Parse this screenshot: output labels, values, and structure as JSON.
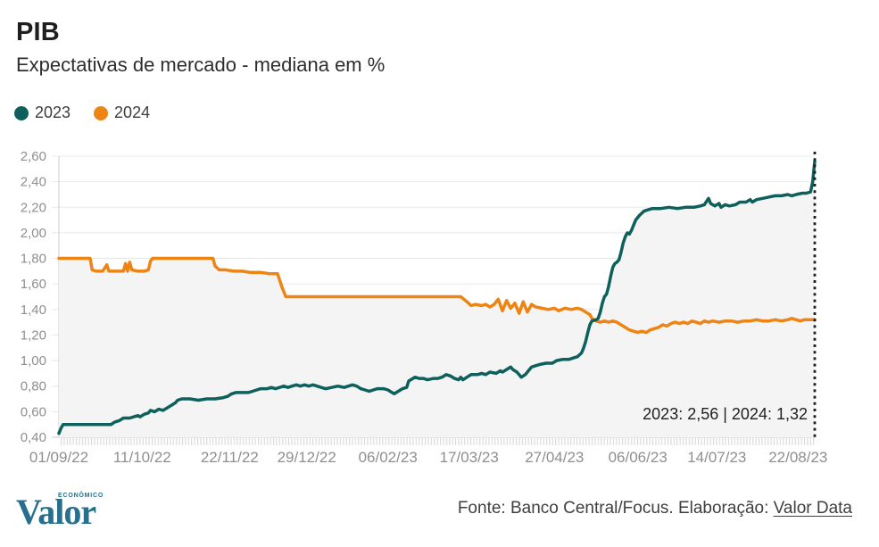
{
  "header": {
    "title": "PIB",
    "subtitle": "Expectativas de mercado - mediana em %"
  },
  "legend": [
    {
      "label": "2023",
      "color": "#0e605c"
    },
    {
      "label": "2024",
      "color": "#ee8414"
    }
  ],
  "chart_data": {
    "type": "line",
    "title": "PIB",
    "subtitle": "Expectativas de mercado - mediana em %",
    "unit": "%",
    "grid": "horizontal",
    "legend_position": "top-left",
    "plot_fill_color": "#f4f4f4",
    "x_axis": {
      "labels": [
        "01/09/22",
        "11/10/22",
        "22/11/22",
        "29/12/22",
        "06/02/23",
        "17/03/23",
        "27/04/23",
        "06/06/23",
        "14/07/23",
        "22/08/23"
      ],
      "label_days": [
        0,
        40,
        82,
        119,
        158,
        197,
        238,
        278,
        316,
        355
      ],
      "span_days": 363
    },
    "y_axis": {
      "min": 0.4,
      "max": 2.6,
      "step": 0.2,
      "tick_labels": [
        "0,40",
        "0,60",
        "0,80",
        "1,00",
        "1,20",
        "1,40",
        "1,60",
        "1,80",
        "2,00",
        "2,20",
        "2,40",
        "2,60"
      ]
    },
    "annotation": {
      "text": "2023: 2,56  |  2024: 1,32",
      "marker": "dotted-vertical-line-at-last-point"
    },
    "series": [
      {
        "name": "2023",
        "color": "#0e605c",
        "final_value": "2,56",
        "points": [
          [
            0,
            0.43
          ],
          [
            1,
            0.47
          ],
          [
            2,
            0.5
          ],
          [
            8,
            0.5
          ],
          [
            14,
            0.5
          ],
          [
            20,
            0.5
          ],
          [
            25,
            0.5
          ],
          [
            27,
            0.52
          ],
          [
            29,
            0.53
          ],
          [
            31,
            0.55
          ],
          [
            34,
            0.55
          ],
          [
            36,
            0.56
          ],
          [
            38,
            0.57
          ],
          [
            39,
            0.56
          ],
          [
            41,
            0.58
          ],
          [
            43,
            0.59
          ],
          [
            44,
            0.61
          ],
          [
            46,
            0.6
          ],
          [
            48,
            0.62
          ],
          [
            50,
            0.61
          ],
          [
            52,
            0.63
          ],
          [
            54,
            0.65
          ],
          [
            56,
            0.67
          ],
          [
            57,
            0.69
          ],
          [
            59,
            0.7
          ],
          [
            63,
            0.7
          ],
          [
            67,
            0.69
          ],
          [
            71,
            0.7
          ],
          [
            75,
            0.7
          ],
          [
            79,
            0.71
          ],
          [
            81,
            0.72
          ],
          [
            83,
            0.74
          ],
          [
            85,
            0.75
          ],
          [
            88,
            0.75
          ],
          [
            91,
            0.75
          ],
          [
            93,
            0.76
          ],
          [
            95,
            0.77
          ],
          [
            97,
            0.78
          ],
          [
            100,
            0.78
          ],
          [
            102,
            0.79
          ],
          [
            104,
            0.78
          ],
          [
            106,
            0.79
          ],
          [
            108,
            0.8
          ],
          [
            110,
            0.79
          ],
          [
            112,
            0.8
          ],
          [
            114,
            0.81
          ],
          [
            116,
            0.8
          ],
          [
            118,
            0.81
          ],
          [
            120,
            0.8
          ],
          [
            122,
            0.81
          ],
          [
            124,
            0.8
          ],
          [
            126,
            0.79
          ],
          [
            128,
            0.78
          ],
          [
            131,
            0.79
          ],
          [
            134,
            0.8
          ],
          [
            137,
            0.79
          ],
          [
            139,
            0.8
          ],
          [
            141,
            0.81
          ],
          [
            143,
            0.8
          ],
          [
            145,
            0.78
          ],
          [
            147,
            0.77
          ],
          [
            149,
            0.76
          ],
          [
            151,
            0.77
          ],
          [
            153,
            0.78
          ],
          [
            156,
            0.78
          ],
          [
            158,
            0.77
          ],
          [
            160,
            0.75
          ],
          [
            161,
            0.74
          ],
          [
            163,
            0.76
          ],
          [
            165,
            0.78
          ],
          [
            167,
            0.79
          ],
          [
            168,
            0.84
          ],
          [
            170,
            0.86
          ],
          [
            171,
            0.87
          ],
          [
            173,
            0.86
          ],
          [
            175,
            0.86
          ],
          [
            177,
            0.85
          ],
          [
            180,
            0.86
          ],
          [
            182,
            0.86
          ],
          [
            184,
            0.87
          ],
          [
            186,
            0.89
          ],
          [
            188,
            0.88
          ],
          [
            190,
            0.86
          ],
          [
            192,
            0.85
          ],
          [
            193,
            0.87
          ],
          [
            194,
            0.85
          ],
          [
            196,
            0.87
          ],
          [
            198,
            0.89
          ],
          [
            201,
            0.89
          ],
          [
            203,
            0.9
          ],
          [
            205,
            0.89
          ],
          [
            207,
            0.91
          ],
          [
            210,
            0.9
          ],
          [
            212,
            0.92
          ],
          [
            213,
            0.91
          ],
          [
            215,
            0.93
          ],
          [
            217,
            0.95
          ],
          [
            218,
            0.93
          ],
          [
            220,
            0.91
          ],
          [
            221,
            0.89
          ],
          [
            222,
            0.87
          ],
          [
            224,
            0.89
          ],
          [
            226,
            0.93
          ],
          [
            227,
            0.95
          ],
          [
            229,
            0.96
          ],
          [
            231,
            0.97
          ],
          [
            234,
            0.98
          ],
          [
            237,
            0.98
          ],
          [
            239,
            1.0
          ],
          [
            242,
            1.01
          ],
          [
            245,
            1.01
          ],
          [
            247,
            1.02
          ],
          [
            249,
            1.03
          ],
          [
            251,
            1.06
          ],
          [
            252,
            1.1
          ],
          [
            253,
            1.15
          ],
          [
            254,
            1.22
          ],
          [
            255,
            1.28
          ],
          [
            256,
            1.31
          ],
          [
            258,
            1.32
          ],
          [
            259,
            1.33
          ],
          [
            260,
            1.38
          ],
          [
            261,
            1.45
          ],
          [
            262,
            1.5
          ],
          [
            263,
            1.52
          ],
          [
            264,
            1.58
          ],
          [
            265,
            1.66
          ],
          [
            266,
            1.73
          ],
          [
            267,
            1.76
          ],
          [
            268,
            1.77
          ],
          [
            269,
            1.79
          ],
          [
            270,
            1.85
          ],
          [
            271,
            1.92
          ],
          [
            272,
            1.97
          ],
          [
            273,
            2.0
          ],
          [
            274,
            1.99
          ],
          [
            275,
            2.02
          ],
          [
            276,
            2.06
          ],
          [
            277,
            2.1
          ],
          [
            279,
            2.14
          ],
          [
            281,
            2.17
          ],
          [
            283,
            2.18
          ],
          [
            285,
            2.19
          ],
          [
            289,
            2.19
          ],
          [
            293,
            2.2
          ],
          [
            297,
            2.19
          ],
          [
            301,
            2.2
          ],
          [
            305,
            2.2
          ],
          [
            308,
            2.21
          ],
          [
            310,
            2.22
          ],
          [
            312,
            2.27
          ],
          [
            313,
            2.23
          ],
          [
            315,
            2.21
          ],
          [
            317,
            2.23
          ],
          [
            318,
            2.2
          ],
          [
            320,
            2.22
          ],
          [
            322,
            2.21
          ],
          [
            325,
            2.22
          ],
          [
            327,
            2.24
          ],
          [
            330,
            2.24
          ],
          [
            332,
            2.26
          ],
          [
            333,
            2.24
          ],
          [
            335,
            2.26
          ],
          [
            338,
            2.27
          ],
          [
            341,
            2.28
          ],
          [
            344,
            2.29
          ],
          [
            347,
            2.29
          ],
          [
            350,
            2.3
          ],
          [
            352,
            2.29
          ],
          [
            354,
            2.3
          ],
          [
            357,
            2.31
          ],
          [
            359,
            2.31
          ],
          [
            361,
            2.32
          ],
          [
            362,
            2.4
          ],
          [
            363,
            2.56
          ]
        ]
      },
      {
        "name": "2024",
        "color": "#ee8414",
        "final_value": "1,32",
        "points": [
          [
            0,
            1.8
          ],
          [
            6,
            1.8
          ],
          [
            12,
            1.8
          ],
          [
            15,
            1.8
          ],
          [
            16,
            1.71
          ],
          [
            18,
            1.7
          ],
          [
            21,
            1.7
          ],
          [
            23,
            1.75
          ],
          [
            24,
            1.7
          ],
          [
            28,
            1.7
          ],
          [
            31,
            1.7
          ],
          [
            32,
            1.76
          ],
          [
            33,
            1.7
          ],
          [
            34,
            1.77
          ],
          [
            35,
            1.71
          ],
          [
            38,
            1.7
          ],
          [
            41,
            1.7
          ],
          [
            43,
            1.71
          ],
          [
            44,
            1.78
          ],
          [
            45,
            1.8
          ],
          [
            52,
            1.8
          ],
          [
            60,
            1.8
          ],
          [
            68,
            1.8
          ],
          [
            74,
            1.8
          ],
          [
            75,
            1.74
          ],
          [
            77,
            1.71
          ],
          [
            80,
            1.71
          ],
          [
            84,
            1.7
          ],
          [
            88,
            1.7
          ],
          [
            92,
            1.69
          ],
          [
            97,
            1.69
          ],
          [
            101,
            1.68
          ],
          [
            105,
            1.68
          ],
          [
            107,
            1.58
          ],
          [
            109,
            1.5
          ],
          [
            120,
            1.5
          ],
          [
            135,
            1.5
          ],
          [
            150,
            1.5
          ],
          [
            165,
            1.5
          ],
          [
            180,
            1.5
          ],
          [
            193,
            1.5
          ],
          [
            196,
            1.46
          ],
          [
            198,
            1.43
          ],
          [
            200,
            1.44
          ],
          [
            203,
            1.43
          ],
          [
            205,
            1.44
          ],
          [
            207,
            1.42
          ],
          [
            209,
            1.44
          ],
          [
            211,
            1.48
          ],
          [
            213,
            1.39
          ],
          [
            215,
            1.47
          ],
          [
            217,
            1.41
          ],
          [
            219,
            1.45
          ],
          [
            221,
            1.37
          ],
          [
            223,
            1.46
          ],
          [
            225,
            1.38
          ],
          [
            227,
            1.44
          ],
          [
            229,
            1.42
          ],
          [
            232,
            1.41
          ],
          [
            235,
            1.4
          ],
          [
            238,
            1.41
          ],
          [
            240,
            1.39
          ],
          [
            243,
            1.41
          ],
          [
            246,
            1.4
          ],
          [
            249,
            1.41
          ],
          [
            251,
            1.4
          ],
          [
            253,
            1.38
          ],
          [
            255,
            1.36
          ],
          [
            256,
            1.33
          ],
          [
            258,
            1.31
          ],
          [
            260,
            1.3
          ],
          [
            262,
            1.31
          ],
          [
            264,
            1.3
          ],
          [
            266,
            1.31
          ],
          [
            268,
            1.3
          ],
          [
            270,
            1.28
          ],
          [
            272,
            1.26
          ],
          [
            274,
            1.24
          ],
          [
            276,
            1.23
          ],
          [
            278,
            1.22
          ],
          [
            280,
            1.23
          ],
          [
            282,
            1.22
          ],
          [
            284,
            1.24
          ],
          [
            286,
            1.25
          ],
          [
            288,
            1.26
          ],
          [
            290,
            1.28
          ],
          [
            292,
            1.27
          ],
          [
            294,
            1.29
          ],
          [
            296,
            1.3
          ],
          [
            298,
            1.29
          ],
          [
            300,
            1.3
          ],
          [
            302,
            1.29
          ],
          [
            304,
            1.31
          ],
          [
            306,
            1.3
          ],
          [
            308,
            1.29
          ],
          [
            310,
            1.31
          ],
          [
            312,
            1.3
          ],
          [
            314,
            1.31
          ],
          [
            317,
            1.3
          ],
          [
            320,
            1.31
          ],
          [
            323,
            1.31
          ],
          [
            326,
            1.3
          ],
          [
            329,
            1.31
          ],
          [
            332,
            1.31
          ],
          [
            335,
            1.32
          ],
          [
            338,
            1.31
          ],
          [
            341,
            1.31
          ],
          [
            344,
            1.32
          ],
          [
            347,
            1.31
          ],
          [
            350,
            1.32
          ],
          [
            352,
            1.33
          ],
          [
            354,
            1.32
          ],
          [
            356,
            1.31
          ],
          [
            358,
            1.32
          ],
          [
            360,
            1.32
          ],
          [
            363,
            1.32
          ]
        ]
      }
    ]
  },
  "footer": {
    "logo_text": "Valor",
    "logo_super": "ECONÔMICO",
    "source_text": "Fonte: Banco Central/Focus. Elaboração: ",
    "source_link": "Valor Data"
  }
}
